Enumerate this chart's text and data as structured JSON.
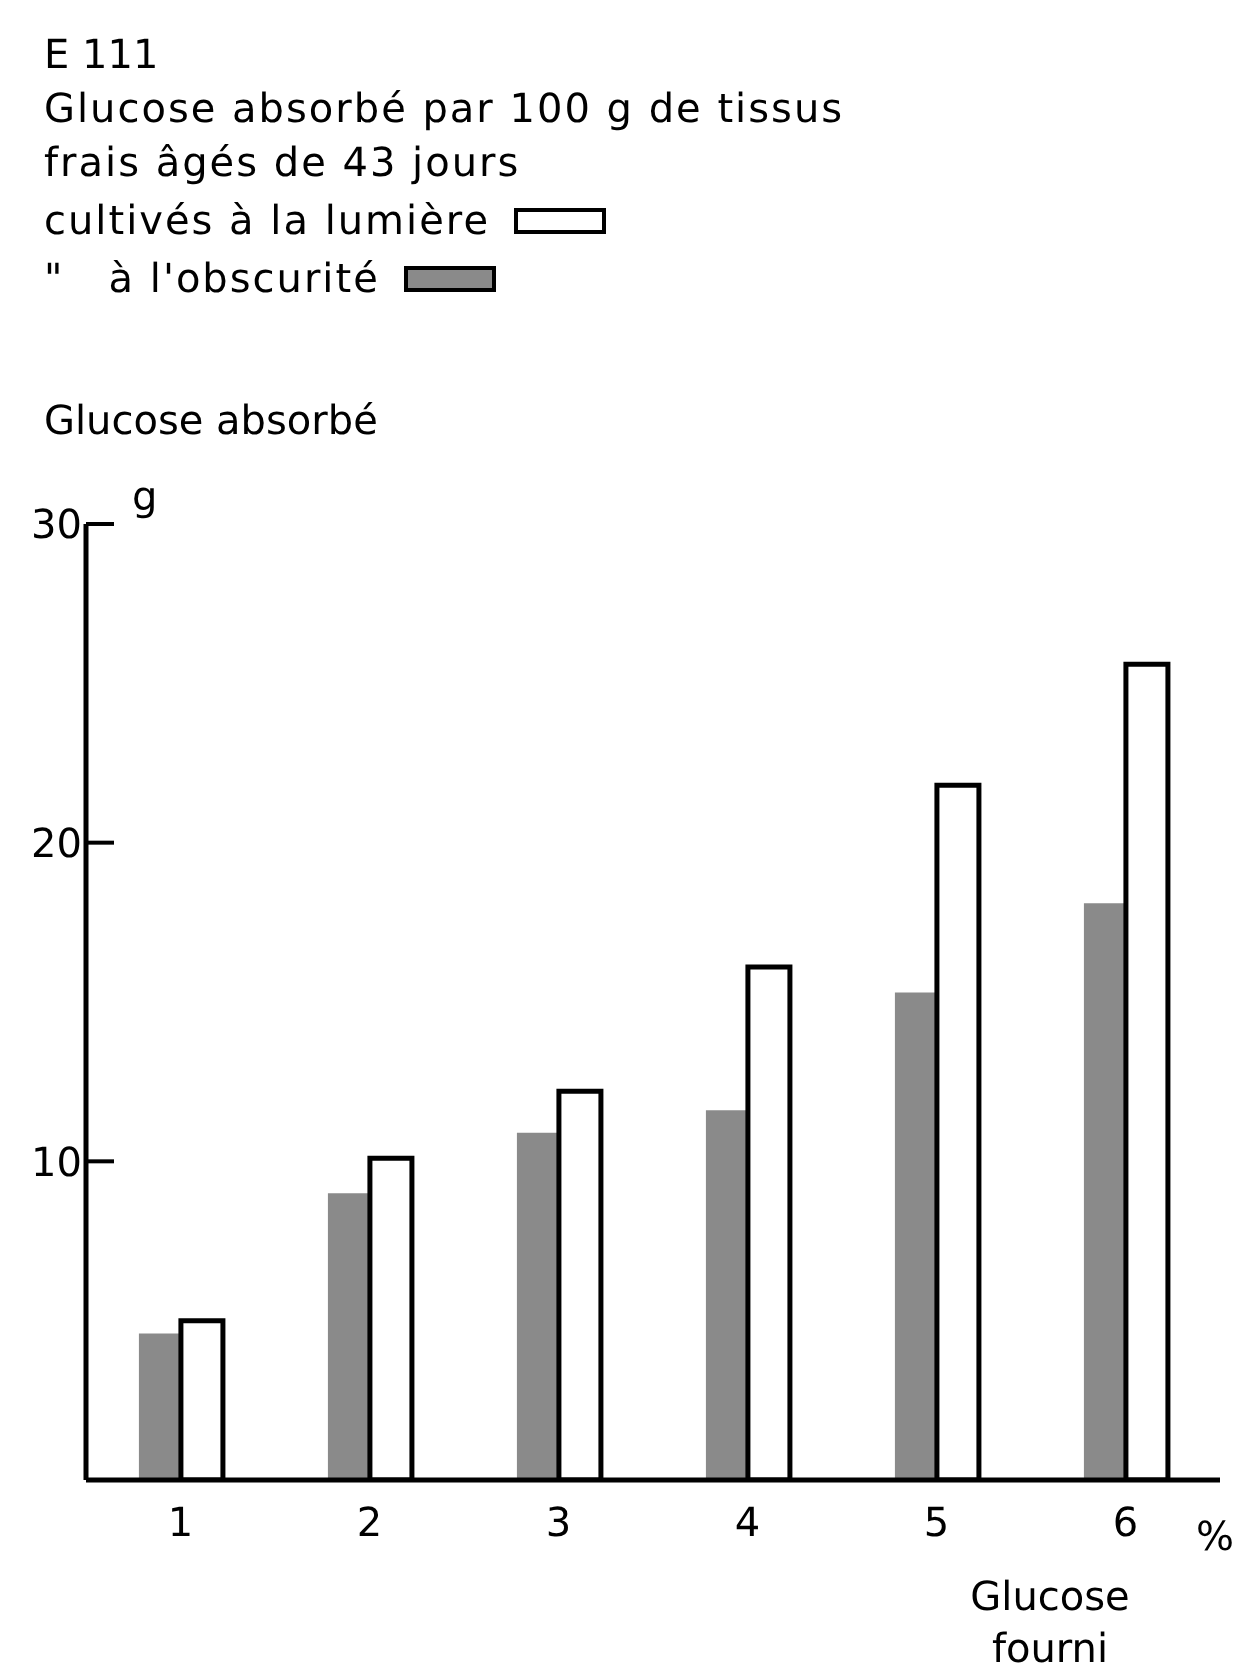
{
  "chart_data": {
    "type": "bar",
    "title": "E 111",
    "subtitle": "Glucose absorbé par 100 g de tissus frais âgés de 43 jours",
    "ylabel": "Glucose absorbé",
    "xlabel": "Glucose fourni",
    "annotations": [
      "g",
      "%"
    ],
    "categories": [
      "1",
      "2",
      "3",
      "4",
      "5",
      "6"
    ],
    "series": [
      {
        "name": "\"   à l'obscurité",
        "color": "#8a8a8a",
        "values": [
          4.6,
          9.0,
          10.9,
          11.6,
          15.3,
          18.1
        ]
      },
      {
        "name": "cultivés à la lumière",
        "color": "#ffffff",
        "values": [
          5.0,
          10.1,
          12.2,
          16.1,
          21.8,
          25.6
        ]
      }
    ],
    "ylim": [
      0,
      30
    ],
    "yticks": [
      10,
      20,
      30
    ],
    "grid": false,
    "legend": "top left"
  }
}
